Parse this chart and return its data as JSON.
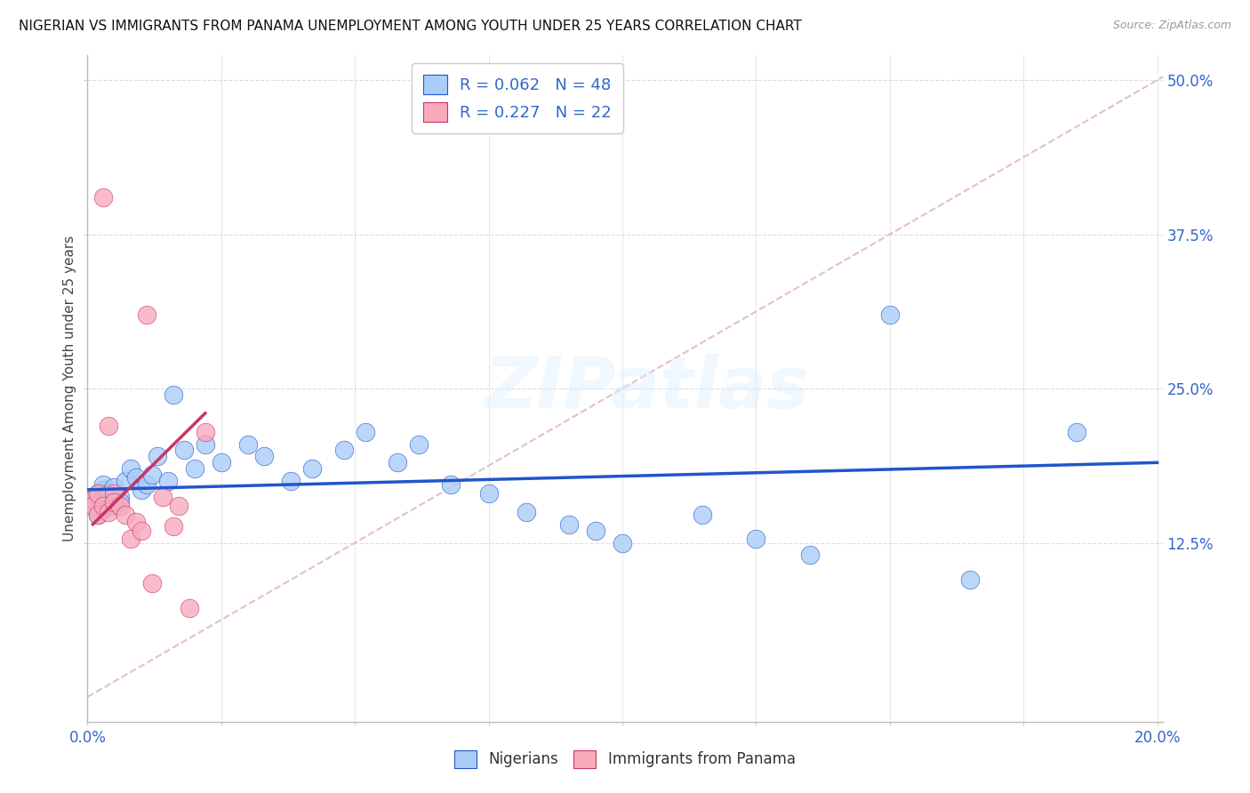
{
  "title": "NIGERIAN VS IMMIGRANTS FROM PANAMA UNEMPLOYMENT AMONG YOUTH UNDER 25 YEARS CORRELATION CHART",
  "source": "Source: ZipAtlas.com",
  "ylabel": "Unemployment Among Youth under 25 years",
  "ytick_labels": [
    "12.5%",
    "25.0%",
    "37.5%",
    "50.0%"
  ],
  "ytick_values": [
    0.125,
    0.25,
    0.375,
    0.5
  ],
  "xmin": 0.0,
  "xmax": 0.2,
  "ymin": -0.02,
  "ymax": 0.52,
  "legend_r1": "R = 0.062",
  "legend_n1": "N = 48",
  "legend_r2": "R = 0.227",
  "legend_n2": "N = 22",
  "watermark": "ZIPatlas",
  "nigerian_color": "#aaccf8",
  "panama_color": "#f8aabb",
  "nigerian_trend_color": "#2255cc",
  "panama_trend_color": "#cc3366",
  "diagonal_color": "#e0b8c8",
  "background_color": "#ffffff",
  "nigerians_x": [
    0.001,
    0.001,
    0.001,
    0.002,
    0.002,
    0.002,
    0.003,
    0.003,
    0.003,
    0.004,
    0.004,
    0.005,
    0.005,
    0.006,
    0.006,
    0.007,
    0.008,
    0.009,
    0.01,
    0.011,
    0.012,
    0.013,
    0.015,
    0.016,
    0.018,
    0.02,
    0.022,
    0.025,
    0.03,
    0.033,
    0.038,
    0.042,
    0.048,
    0.052,
    0.058,
    0.062,
    0.068,
    0.075,
    0.082,
    0.09,
    0.095,
    0.1,
    0.115,
    0.125,
    0.135,
    0.15,
    0.165,
    0.185
  ],
  "nigerians_y": [
    0.16,
    0.158,
    0.155,
    0.162,
    0.165,
    0.148,
    0.152,
    0.168,
    0.172,
    0.158,
    0.165,
    0.155,
    0.17,
    0.162,
    0.158,
    0.175,
    0.185,
    0.178,
    0.168,
    0.172,
    0.18,
    0.195,
    0.175,
    0.245,
    0.2,
    0.185,
    0.205,
    0.19,
    0.205,
    0.195,
    0.175,
    0.185,
    0.2,
    0.215,
    0.19,
    0.205,
    0.172,
    0.165,
    0.15,
    0.14,
    0.135,
    0.125,
    0.148,
    0.128,
    0.115,
    0.31,
    0.095,
    0.215
  ],
  "panama_x": [
    0.001,
    0.001,
    0.002,
    0.002,
    0.003,
    0.003,
    0.004,
    0.004,
    0.005,
    0.005,
    0.006,
    0.007,
    0.008,
    0.009,
    0.01,
    0.011,
    0.012,
    0.014,
    0.016,
    0.017,
    0.019,
    0.022
  ],
  "panama_y": [
    0.16,
    0.155,
    0.165,
    0.148,
    0.155,
    0.405,
    0.22,
    0.15,
    0.165,
    0.158,
    0.155,
    0.148,
    0.128,
    0.142,
    0.135,
    0.31,
    0.092,
    0.162,
    0.138,
    0.155,
    0.072,
    0.215
  ],
  "nig_trend_x0": 0.0,
  "nig_trend_x1": 0.2,
  "nig_trend_y0": 0.168,
  "nig_trend_y1": 0.19,
  "pan_trend_x0": 0.001,
  "pan_trend_x1": 0.022,
  "pan_trend_y0": 0.14,
  "pan_trend_y1": 0.23
}
